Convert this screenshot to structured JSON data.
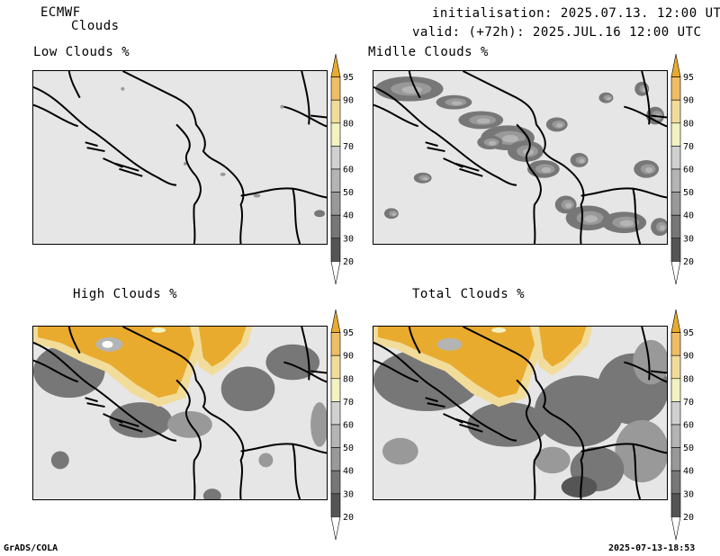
{
  "header": {
    "model": "ECMWF",
    "parameter": "Clouds",
    "initialisation": "initialisation: 2025.07.13. 12:00 UTC",
    "valid": "valid: (+72h): 2025.JUL.16 12:00 UTC"
  },
  "panels": [
    {
      "title": "Low Clouds %"
    },
    {
      "title": "Midlle Clouds %"
    },
    {
      "title": "High Clouds %"
    },
    {
      "title": "Total Clouds %"
    }
  ],
  "colorbar": {
    "levels": [
      "20",
      "30",
      "40",
      "50",
      "60",
      "70",
      "80",
      "90",
      "95"
    ],
    "colors": [
      "#ffffff",
      "#555555",
      "#777777",
      "#999999",
      "#b4b4b4",
      "#d0d0d0",
      "#f2f2c2",
      "#f2dc9a",
      "#eebd66",
      "#e8ab2e"
    ]
  },
  "footer": {
    "software": "GrADS/COLA",
    "timestamp": "2025-07-13-18:53"
  }
}
